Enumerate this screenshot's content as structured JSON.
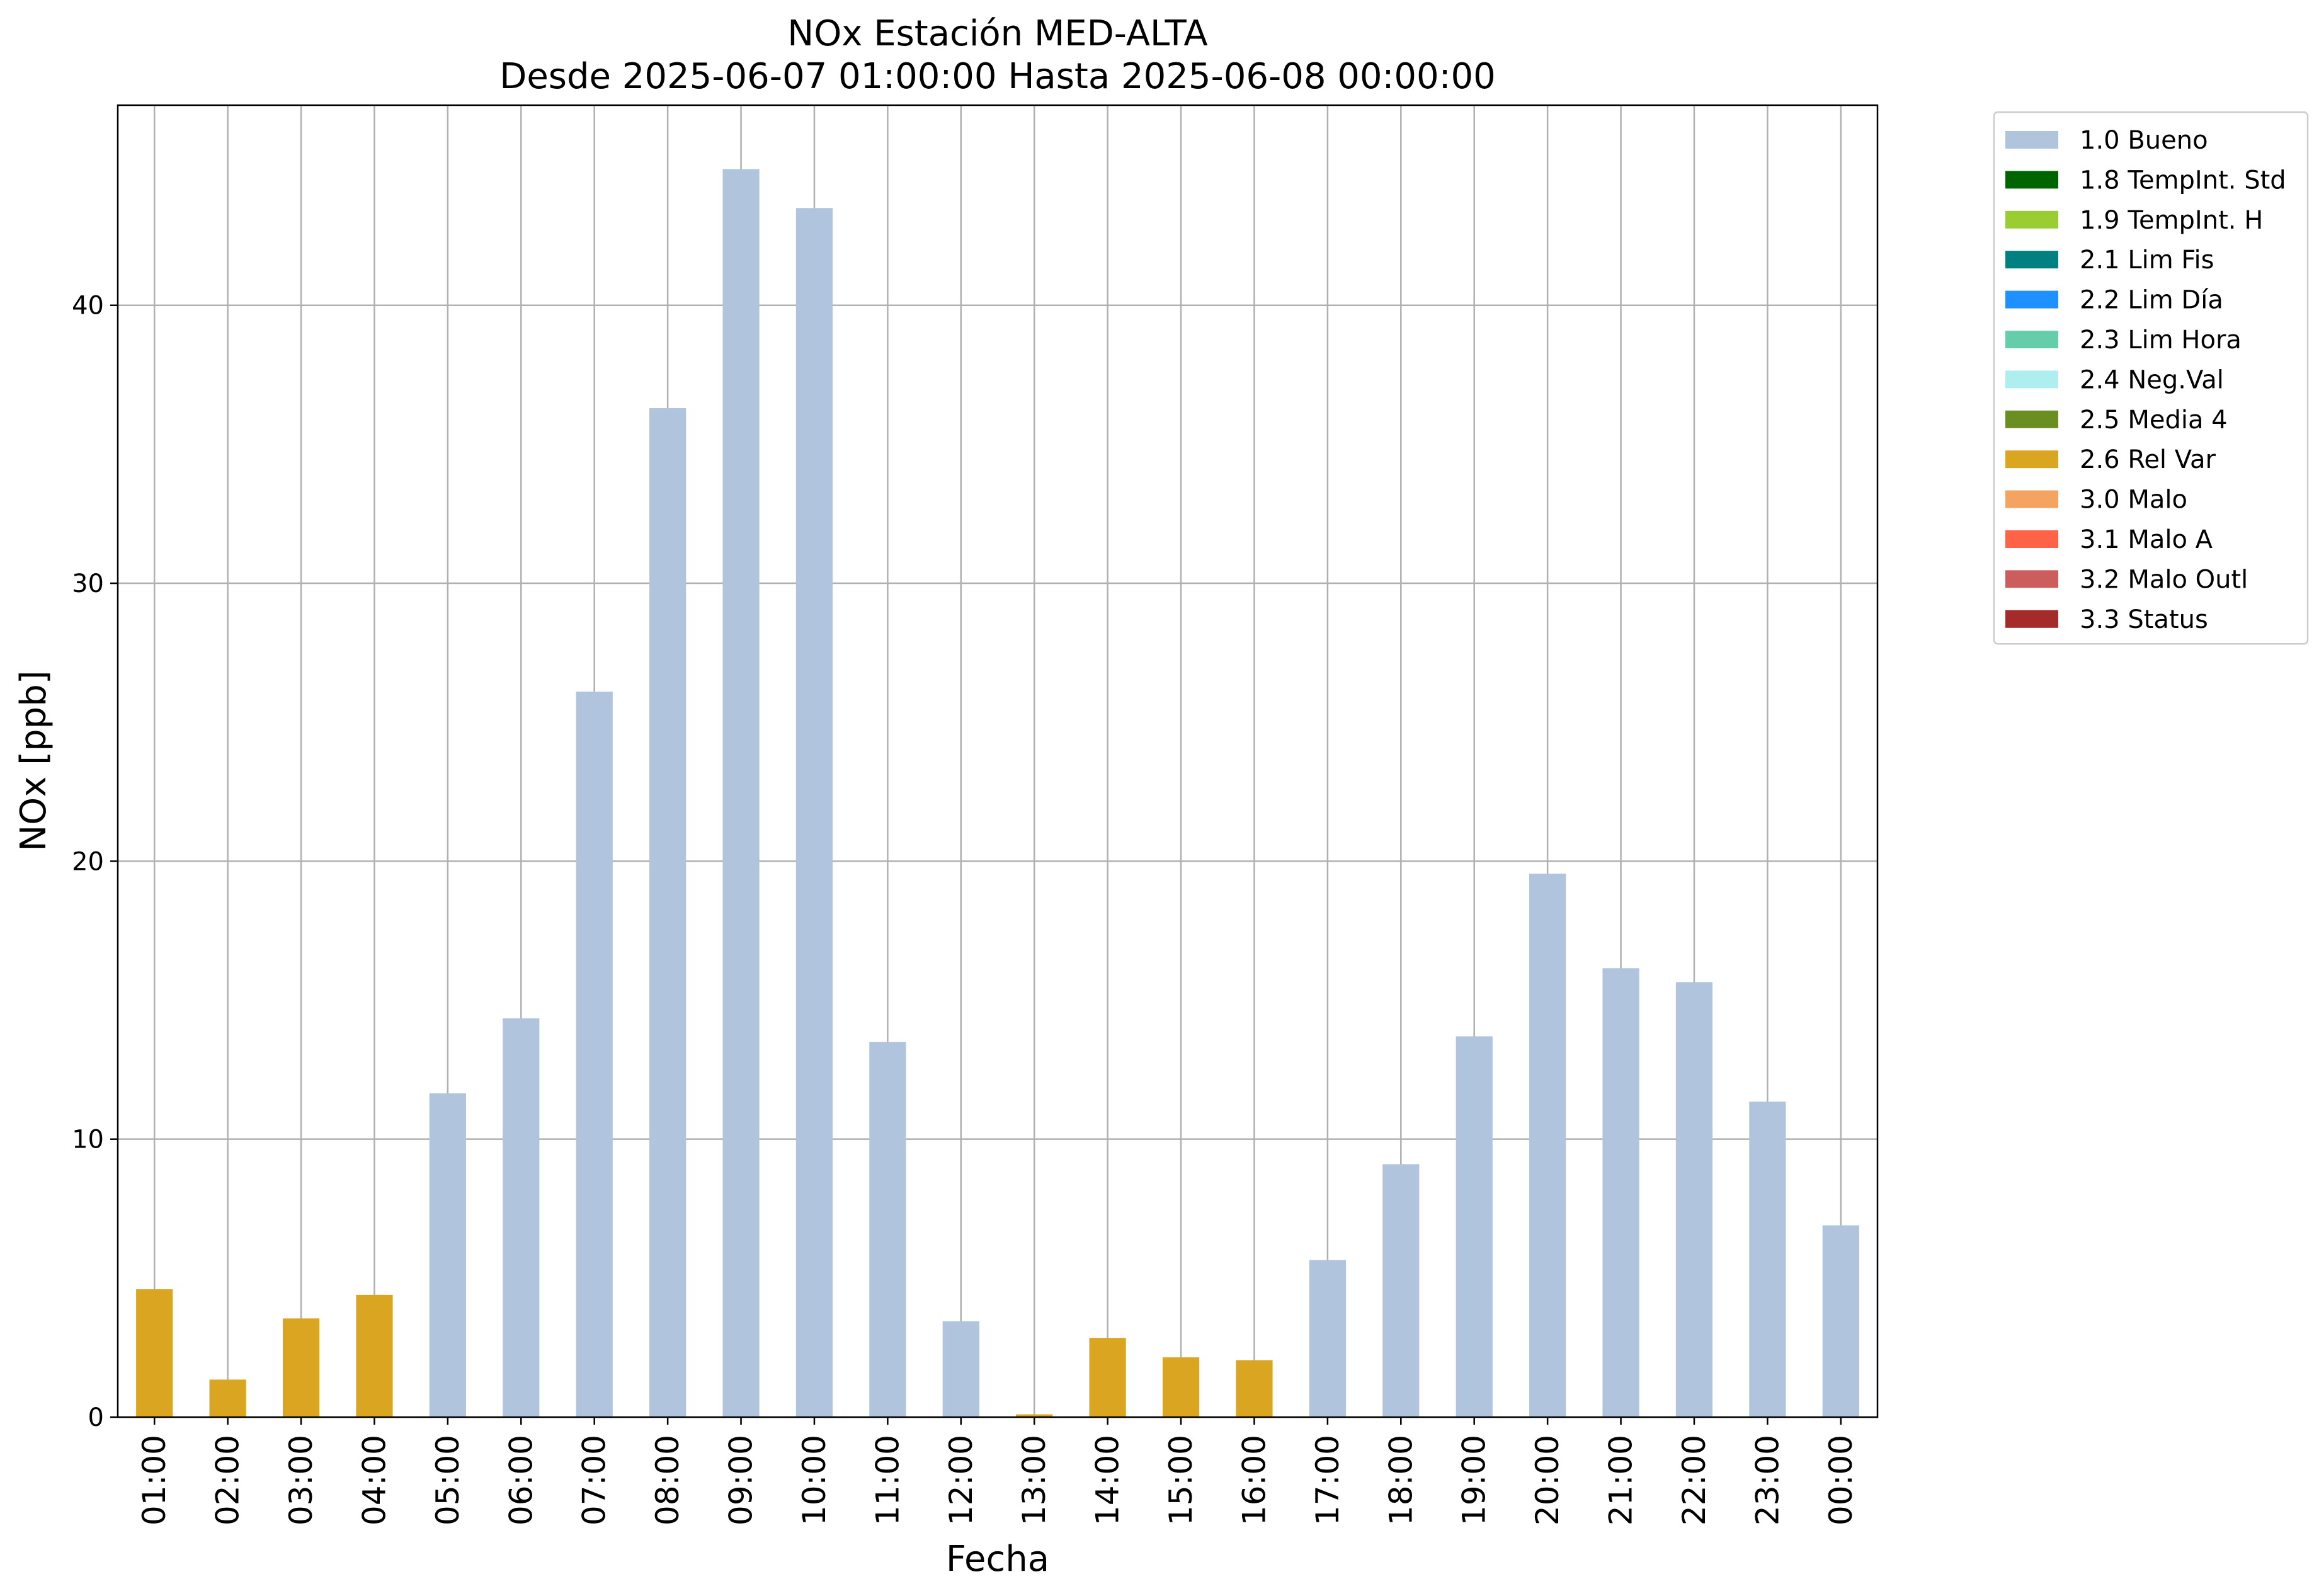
{
  "chart_data": {
    "type": "bar",
    "title": "NOx Estación MED-ALTA",
    "subtitle": "Desde 2025-06-07 01:00:00 Hasta 2025-06-08 00:00:00",
    "xlabel": "Fecha",
    "ylabel": "NOx [ppb]",
    "ylim": [
      0,
      47.2
    ],
    "yticks": [
      0,
      10,
      20,
      30,
      40
    ],
    "grid": true,
    "legend_position": "outside-top-right",
    "categories": [
      "01:00",
      "02:00",
      "03:00",
      "04:00",
      "05:00",
      "06:00",
      "07:00",
      "08:00",
      "09:00",
      "10:00",
      "11:00",
      "12:00",
      "13:00",
      "14:00",
      "15:00",
      "16:00",
      "17:00",
      "18:00",
      "19:00",
      "20:00",
      "21:00",
      "22:00",
      "23:00",
      "00:00"
    ],
    "values": [
      4.6,
      1.35,
      3.55,
      4.4,
      11.65,
      14.35,
      26.1,
      36.3,
      44.9,
      43.5,
      13.5,
      3.45,
      0.1,
      2.85,
      2.15,
      2.05,
      5.65,
      9.1,
      13.7,
      19.55,
      16.15,
      15.65,
      11.35,
      6.9
    ],
    "flags": [
      "2.6 Rel Var",
      "2.6 Rel Var",
      "2.6 Rel Var",
      "2.6 Rel Var",
      "1.0 Bueno",
      "1.0 Bueno",
      "1.0 Bueno",
      "1.0 Bueno",
      "1.0 Bueno",
      "1.0 Bueno",
      "1.0 Bueno",
      "1.0 Bueno",
      "2.6 Rel Var",
      "2.6 Rel Var",
      "2.6 Rel Var",
      "2.6 Rel Var",
      "1.0 Bueno",
      "1.0 Bueno",
      "1.0 Bueno",
      "1.0 Bueno",
      "1.0 Bueno",
      "1.0 Bueno",
      "1.0 Bueno",
      "1.0 Bueno"
    ],
    "legend": [
      {
        "label": "1.0 Bueno",
        "color": "#b0c4de"
      },
      {
        "label": "1.8 TempInt. Std",
        "color": "#006400"
      },
      {
        "label": "1.9 TempInt. H",
        "color": "#9acd32"
      },
      {
        "label": "2.1 Lim Fis",
        "color": "#008080"
      },
      {
        "label": "2.2 Lim Día",
        "color": "#1e90ff"
      },
      {
        "label": "2.3 Lim Hora",
        "color": "#66cdaa"
      },
      {
        "label": "2.4 Neg.Val",
        "color": "#afeeee"
      },
      {
        "label": "2.5 Media 4",
        "color": "#6b8e23"
      },
      {
        "label": "2.6 Rel Var",
        "color": "#daa520"
      },
      {
        "label": "3.0 Malo",
        "color": "#f4a460"
      },
      {
        "label": "3.1 Malo A",
        "color": "#ff6347"
      },
      {
        "label": "3.2 Malo Outl",
        "color": "#cd5c5c"
      },
      {
        "label": "3.3 Status",
        "color": "#a52a2a"
      }
    ]
  }
}
